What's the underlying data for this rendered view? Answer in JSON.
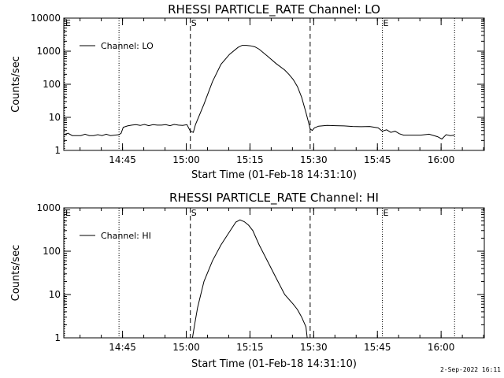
{
  "footer": {
    "date": "2-Sep-2022 16:11"
  },
  "chart_data": [
    {
      "type": "line",
      "title": "RHESSI PARTICLE_RATE Channel: LO",
      "xlabel": "Start Time (01-Feb-18 14:31:10)",
      "ylabel": "Counts/sec",
      "yscale": "log",
      "xlim_minutes": [
        0,
        99
      ],
      "ylim": [
        1,
        10000
      ],
      "xticks": [
        {
          "minute": 13.83,
          "label": "14:45"
        },
        {
          "minute": 28.83,
          "label": "15:00"
        },
        {
          "minute": 43.83,
          "label": "15:15"
        },
        {
          "minute": 58.83,
          "label": "15:30"
        },
        {
          "minute": 73.83,
          "label": "15:45"
        },
        {
          "minute": 88.83,
          "label": "16:00"
        }
      ],
      "yticks": [
        {
          "value": 1,
          "label": "1"
        },
        {
          "value": 10,
          "label": "10"
        },
        {
          "value": 100,
          "label": "100"
        },
        {
          "value": 1000,
          "label": "1000"
        },
        {
          "value": 10000,
          "label": "10000"
        }
      ],
      "legend": {
        "label": "Channel: LO",
        "position": "top-left"
      },
      "markers": [
        {
          "minute": 0,
          "style": "dotted",
          "label": "E"
        },
        {
          "minute": 13.0,
          "style": "dotted",
          "label": ""
        },
        {
          "minute": 29.8,
          "style": "dashed",
          "label": "S"
        },
        {
          "minute": 58.0,
          "style": "dashed",
          "label": ""
        },
        {
          "minute": 75.0,
          "style": "dotted",
          "label": "E"
        },
        {
          "minute": 92.0,
          "style": "dotted",
          "label": ""
        }
      ],
      "series": [
        {
          "name": "Channel: LO",
          "x": [
            0,
            1,
            2,
            3,
            4,
            5,
            6,
            7,
            8,
            9,
            10,
            11,
            12,
            13,
            13.5,
            14,
            15,
            16,
            17,
            18,
            19,
            20,
            21,
            22,
            23,
            24,
            25,
            26,
            27,
            28,
            29,
            29.8,
            30.5,
            31,
            33,
            35,
            37,
            39,
            41,
            42,
            43,
            44,
            45,
            46,
            48,
            50,
            52,
            53,
            54,
            55,
            56,
            57,
            57.5,
            58,
            58.5,
            59,
            60,
            62,
            64,
            66,
            68,
            70,
            72,
            74,
            75,
            76,
            77,
            78,
            79,
            80,
            82,
            84,
            86,
            88,
            89,
            90,
            91,
            92
          ],
          "y": [
            3,
            3.3,
            2.8,
            2.8,
            2.8,
            3.1,
            2.8,
            2.8,
            3,
            2.8,
            3.1,
            2.8,
            2.9,
            3,
            3.3,
            5,
            5.5,
            5.8,
            6,
            5.7,
            6.1,
            5.6,
            6,
            5.8,
            5.8,
            6,
            5.6,
            6.1,
            5.8,
            5.7,
            6,
            3.8,
            3.5,
            6,
            25,
            120,
            400,
            800,
            1300,
            1500,
            1500,
            1450,
            1350,
            1150,
            700,
            420,
            270,
            200,
            140,
            85,
            40,
            14,
            8,
            4.5,
            4,
            4.8,
            5.4,
            5.7,
            5.6,
            5.5,
            5.3,
            5.2,
            5.3,
            4.8,
            3.8,
            4.2,
            3.5,
            3.8,
            3.2,
            2.9,
            2.9,
            2.9,
            3.1,
            2.6,
            2.2,
            3.0,
            2.8,
            2.9
          ]
        }
      ]
    },
    {
      "type": "line",
      "title": "RHESSI PARTICLE_RATE Channel: HI",
      "xlabel": "Start Time (01-Feb-18 14:31:10)",
      "ylabel": "Counts/sec",
      "yscale": "log",
      "xlim_minutes": [
        0,
        99
      ],
      "ylim": [
        1,
        1000
      ],
      "xticks": [
        {
          "minute": 13.83,
          "label": "14:45"
        },
        {
          "minute": 28.83,
          "label": "15:00"
        },
        {
          "minute": 43.83,
          "label": "15:15"
        },
        {
          "minute": 58.83,
          "label": "15:30"
        },
        {
          "minute": 73.83,
          "label": "15:45"
        },
        {
          "minute": 88.83,
          "label": "16:00"
        }
      ],
      "yticks": [
        {
          "value": 1,
          "label": "1"
        },
        {
          "value": 10,
          "label": "10"
        },
        {
          "value": 100,
          "label": "100"
        },
        {
          "value": 1000,
          "label": "1000"
        }
      ],
      "legend": {
        "label": "Channel: HI",
        "position": "top-left"
      },
      "markers": [
        {
          "minute": 0,
          "style": "dotted",
          "label": "E"
        },
        {
          "minute": 13.0,
          "style": "dotted",
          "label": ""
        },
        {
          "minute": 29.8,
          "style": "dashed",
          "label": "S"
        },
        {
          "minute": 58.0,
          "style": "dashed",
          "label": ""
        },
        {
          "minute": 75.0,
          "style": "dotted",
          "label": "E"
        },
        {
          "minute": 92.0,
          "style": "dotted",
          "label": ""
        }
      ],
      "series": [
        {
          "name": "Channel: HI",
          "x": [
            30.3,
            30.8,
            31.5,
            33,
            35,
            37,
            39,
            40.5,
            41.5,
            42.5,
            43.5,
            44.5,
            46,
            48,
            50,
            52,
            54,
            55,
            56,
            57,
            57.3
          ],
          "y": [
            1,
            2,
            5,
            20,
            60,
            140,
            280,
            470,
            530,
            480,
            400,
            300,
            140,
            58,
            24,
            10,
            6,
            4.5,
            3,
            1.8,
            1
          ]
        }
      ]
    }
  ]
}
